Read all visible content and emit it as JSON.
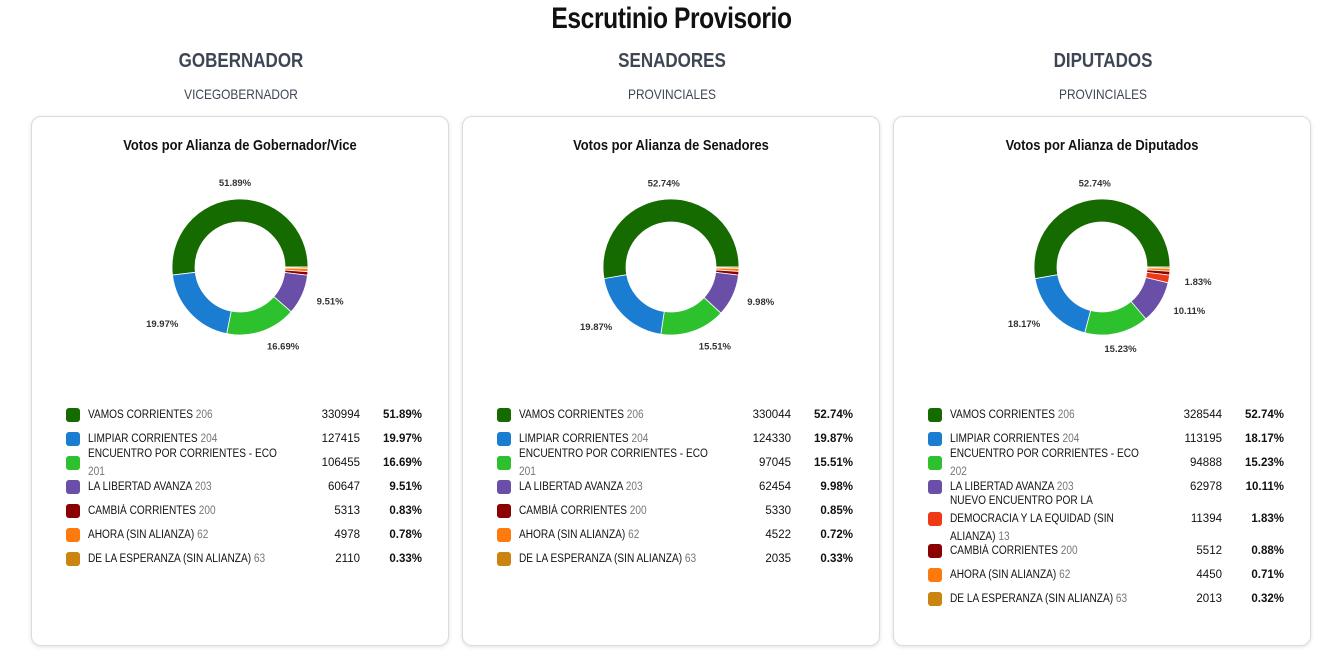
{
  "title": "Escrutinio Provisorio",
  "columns": [
    {
      "heading": "GOBERNADOR",
      "subheading": "VICEGOBERNADOR",
      "chart_title": "Votos por Alianza de Gobernador/Vice"
    },
    {
      "heading": "SENADORES",
      "subheading": "PROVINCIALES",
      "chart_title": "Votos por Alianza de Senadores"
    },
    {
      "heading": "DIPUTADOS",
      "subheading": "PROVINCIALES",
      "chart_title": "Votos por Alianza de Diputados"
    }
  ],
  "chart_data": [
    {
      "type": "pie",
      "title": "Votos por Alianza de Gobernador/Vice",
      "series": [
        {
          "name": "VAMOS CORRIENTES",
          "number": "206",
          "votes": "330994",
          "pct": "51.89%",
          "value": 51.89,
          "color": "#156a00",
          "label": "51.89%"
        },
        {
          "name": "LA LIBERTAD AVANZA",
          "number": "203",
          "votes": "60647",
          "pct": "9.51%",
          "value": 9.51,
          "color": "#6a4fa8",
          "label": "9.51%"
        },
        {
          "name": "ENCUENTRO POR CORRIENTES - ECO",
          "number": "201",
          "votes": "106455",
          "pct": "16.69%",
          "value": 16.69,
          "color": "#2dc12d",
          "label": "16.69%"
        },
        {
          "name": "LIMPIAR CORRIENTES",
          "number": "204",
          "votes": "127415",
          "pct": "19.97%",
          "value": 19.97,
          "color": "#1a7dd1",
          "label": "19.97%"
        },
        {
          "name": "CAMBIÁ CORRIENTES",
          "number": "200",
          "votes": "5313",
          "pct": "0.83%",
          "value": 0.83,
          "color": "#8b0000",
          "label": ""
        },
        {
          "name": "AHORA (SIN ALIANZA)",
          "number": "62",
          "votes": "4978",
          "pct": "0.78%",
          "value": 0.78,
          "color": "#ff7a0d",
          "label": ""
        },
        {
          "name": "DE LA ESPERANZA (SIN ALIANZA)",
          "number": "63",
          "votes": "2110",
          "pct": "0.33%",
          "value": 0.33,
          "color": "#cc8410",
          "label": ""
        }
      ],
      "chart_order": [
        "VAMOS CORRIENTES",
        "DE LA ESPERANZA (SIN ALIANZA)",
        "AHORA (SIN ALIANZA)",
        "CAMBIÁ CORRIENTES",
        "LA LIBERTAD AVANZA",
        "ENCUENTRO POR CORRIENTES - ECO",
        "LIMPIAR CORRIENTES"
      ],
      "legend_order": [
        "VAMOS CORRIENTES",
        "LIMPIAR CORRIENTES",
        "ENCUENTRO POR CORRIENTES - ECO",
        "LA LIBERTAD AVANZA",
        "CAMBIÁ CORRIENTES",
        "AHORA (SIN ALIANZA)",
        "DE LA ESPERANZA (SIN ALIANZA)"
      ]
    },
    {
      "type": "pie",
      "title": "Votos por Alianza de Senadores",
      "series": [
        {
          "name": "VAMOS CORRIENTES",
          "number": "206",
          "votes": "330044",
          "pct": "52.74%",
          "value": 52.74,
          "color": "#156a00",
          "label": "52.74%"
        },
        {
          "name": "LIMPIAR CORRIENTES",
          "number": "204",
          "votes": "124330",
          "pct": "19.87%",
          "value": 19.87,
          "color": "#1a7dd1",
          "label": "19.87%"
        },
        {
          "name": "ENCUENTRO POR CORRIENTES - ECO",
          "number": "201",
          "votes": "97045",
          "pct": "15.51%",
          "value": 15.51,
          "color": "#2dc12d",
          "label": "15.51%"
        },
        {
          "name": "LA LIBERTAD AVANZA",
          "number": "203",
          "votes": "62454",
          "pct": "9.98%",
          "value": 9.98,
          "color": "#6a4fa8",
          "label": "9.98%"
        },
        {
          "name": "CAMBIÁ CORRIENTES",
          "number": "200",
          "votes": "5330",
          "pct": "0.85%",
          "value": 0.85,
          "color": "#8b0000",
          "label": ""
        },
        {
          "name": "AHORA (SIN ALIANZA)",
          "number": "62",
          "votes": "4522",
          "pct": "0.72%",
          "value": 0.72,
          "color": "#ff7a0d",
          "label": ""
        },
        {
          "name": "DE LA ESPERANZA (SIN ALIANZA)",
          "number": "63",
          "votes": "2035",
          "pct": "0.33%",
          "value": 0.33,
          "color": "#cc8410",
          "label": ""
        }
      ],
      "chart_order": [
        "VAMOS CORRIENTES",
        "DE LA ESPERANZA (SIN ALIANZA)",
        "AHORA (SIN ALIANZA)",
        "CAMBIÁ CORRIENTES",
        "LA LIBERTAD AVANZA",
        "ENCUENTRO POR CORRIENTES - ECO",
        "LIMPIAR CORRIENTES"
      ],
      "legend_order": [
        "VAMOS CORRIENTES",
        "LIMPIAR CORRIENTES",
        "ENCUENTRO POR CORRIENTES - ECO",
        "LA LIBERTAD AVANZA",
        "CAMBIÁ CORRIENTES",
        "AHORA (SIN ALIANZA)",
        "DE LA ESPERANZA (SIN ALIANZA)"
      ]
    },
    {
      "type": "pie",
      "title": "Votos por Alianza de Diputados",
      "series": [
        {
          "name": "VAMOS CORRIENTES",
          "number": "206",
          "votes": "328544",
          "pct": "52.74%",
          "value": 52.74,
          "color": "#156a00",
          "label": "52.74%"
        },
        {
          "name": "LIMPIAR CORRIENTES",
          "number": "204",
          "votes": "113195",
          "pct": "18.17%",
          "value": 18.17,
          "color": "#1a7dd1",
          "label": "18.17%"
        },
        {
          "name": "ENCUENTRO POR CORRIENTES - ECO",
          "number": "202",
          "votes": "94888",
          "pct": "15.23%",
          "value": 15.23,
          "color": "#2dc12d",
          "label": "15.23%"
        },
        {
          "name": "LA LIBERTAD AVANZA",
          "number": "203",
          "votes": "62978",
          "pct": "10.11%",
          "value": 10.11,
          "color": "#6a4fa8",
          "label": "10.11%"
        },
        {
          "name": "NUEVO ENCUENTRO POR LA DEMOCRACIA Y LA EQUIDAD (SIN ALIANZA)",
          "number": "13",
          "votes": "11394",
          "pct": "1.83%",
          "value": 1.83,
          "color": "#ee3a14",
          "label": "1.83%"
        },
        {
          "name": "CAMBIÁ CORRIENTES",
          "number": "200",
          "votes": "5512",
          "pct": "0.88%",
          "value": 0.88,
          "color": "#8b0000",
          "label": ""
        },
        {
          "name": "AHORA (SIN ALIANZA)",
          "number": "62",
          "votes": "4450",
          "pct": "0.71%",
          "value": 0.71,
          "color": "#ff7a0d",
          "label": ""
        },
        {
          "name": "DE LA ESPERANZA (SIN ALIANZA)",
          "number": "63",
          "votes": "2013",
          "pct": "0.32%",
          "value": 0.32,
          "color": "#cc8410",
          "label": ""
        }
      ],
      "chart_order": [
        "VAMOS CORRIENTES",
        "DE LA ESPERANZA (SIN ALIANZA)",
        "AHORA (SIN ALIANZA)",
        "CAMBIÁ CORRIENTES",
        "NUEVO ENCUENTRO POR LA DEMOCRACIA Y LA EQUIDAD (SIN ALIANZA)",
        "LA LIBERTAD AVANZA",
        "ENCUENTRO POR CORRIENTES - ECO",
        "LIMPIAR CORRIENTES"
      ],
      "legend_order": [
        "VAMOS CORRIENTES",
        "LIMPIAR CORRIENTES",
        "ENCUENTRO POR CORRIENTES - ECO",
        "LA LIBERTAD AVANZA",
        "NUEVO ENCUENTRO POR LA DEMOCRACIA Y LA EQUIDAD (SIN ALIANZA)",
        "CAMBIÁ CORRIENTES",
        "AHORA (SIN ALIANZA)",
        "DE LA ESPERANZA (SIN ALIANZA)"
      ]
    }
  ]
}
